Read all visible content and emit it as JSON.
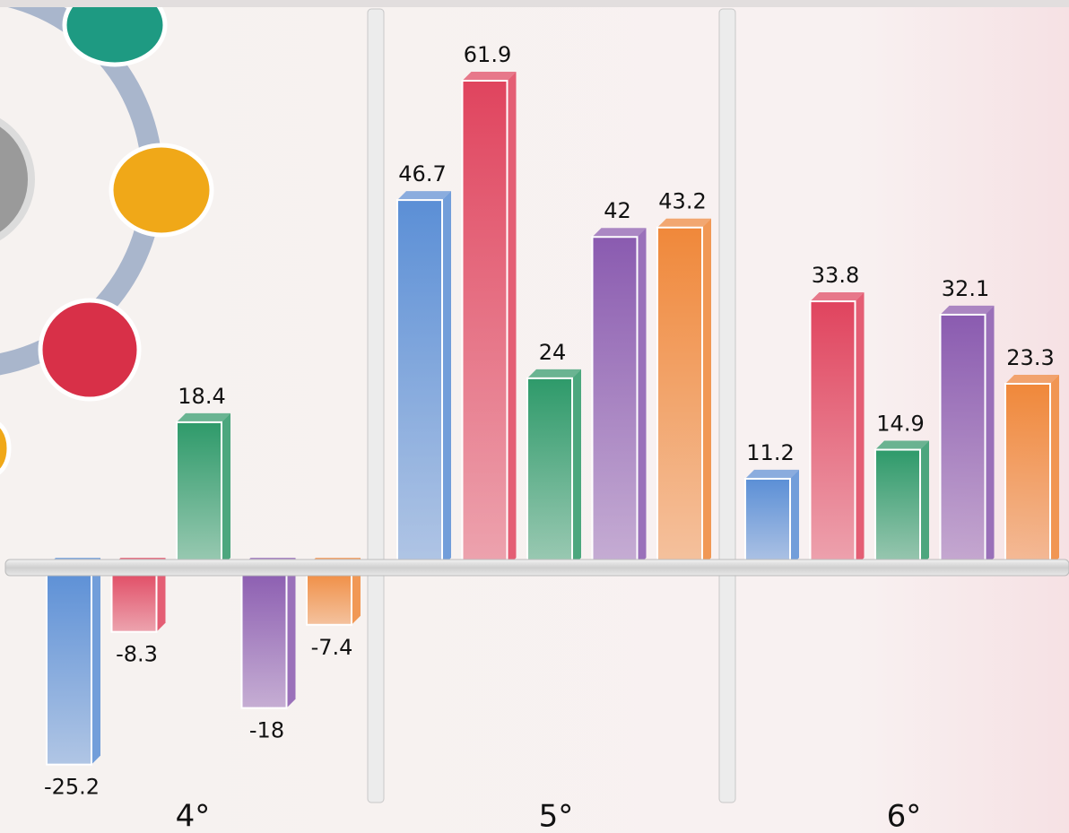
{
  "chart_data": {
    "type": "bar",
    "categories": [
      "4°",
      "5°",
      "6°"
    ],
    "series": [
      {
        "color": "#5b8fd6",
        "values": [
          -25.2,
          46.7,
          11.2
        ]
      },
      {
        "color": "#e0445e",
        "values": [
          -8.3,
          61.9,
          33.8
        ]
      },
      {
        "color": "#2e9a6a",
        "values": [
          18.4,
          24,
          14.9
        ]
      },
      {
        "color": "#8a5bb0",
        "values": [
          -18,
          42,
          32.1
        ]
      },
      {
        "color": "#f0883a",
        "values": [
          -7.4,
          43.2,
          23.3
        ]
      }
    ]
  }
}
